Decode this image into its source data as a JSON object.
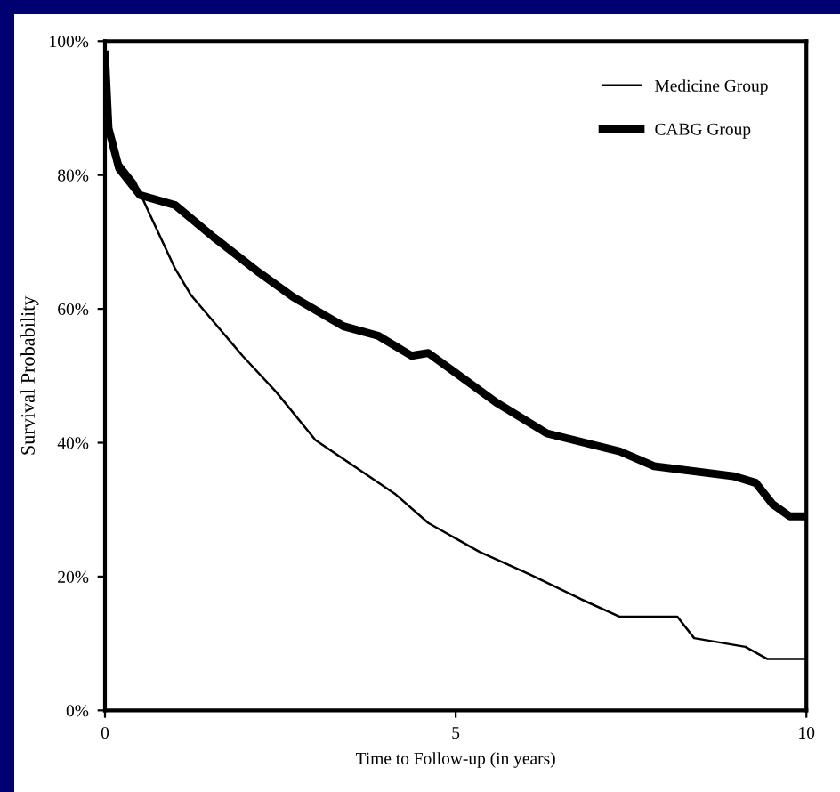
{
  "chart_data": {
    "type": "line",
    "xlabel": "Time to Follow-up (in years)",
    "ylabel": "Survival Probability",
    "xlim": [
      0,
      10
    ],
    "xticks": [
      0,
      5,
      10
    ],
    "ylim": [
      0,
      100
    ],
    "yticks": [
      {
        "value": 0,
        "label": "0%"
      },
      {
        "value": 20,
        "label": "20%"
      },
      {
        "value": 40,
        "label": "40%"
      },
      {
        "value": 60,
        "label": "60%"
      },
      {
        "value": 80,
        "label": "80%"
      },
      {
        "value": 100,
        "label": "100%"
      }
    ],
    "grid": false,
    "legend": "top right",
    "line_style": "solid",
    "marker": "none",
    "series": [
      {
        "name": "Medicine Group",
        "color": "#000000",
        "x": [
          0,
          0.05,
          0.2,
          0.43,
          0.6,
          1.0,
          1.23,
          1.96,
          2.44,
          3.0,
          4.13,
          4.61,
          5.34,
          6.06,
          6.79,
          7.34,
          8.16,
          8.4,
          9.13,
          9.44,
          10
        ],
        "values": [
          98,
          88,
          82,
          79,
          75,
          66,
          62,
          53,
          47.6,
          40.4,
          32.4,
          28,
          23.7,
          20.3,
          16.6,
          14,
          14,
          10.8,
          9.5,
          7.7,
          7.7
        ]
      },
      {
        "name": "CABG Group",
        "color": "#000000",
        "x": [
          0,
          0.05,
          0.2,
          0.5,
          1.0,
          1.55,
          2.2,
          2.68,
          3.4,
          3.89,
          4.37,
          4.61,
          5.58,
          6.3,
          7.34,
          7.83,
          8.96,
          9.28,
          9.52,
          9.76,
          10
        ],
        "values": [
          98,
          87,
          81,
          77,
          75.5,
          70.7,
          65.4,
          61.8,
          57.4,
          56,
          53,
          53.4,
          46,
          41.4,
          38.7,
          36.5,
          35,
          34,
          30.8,
          29,
          29
        ]
      }
    ]
  }
}
